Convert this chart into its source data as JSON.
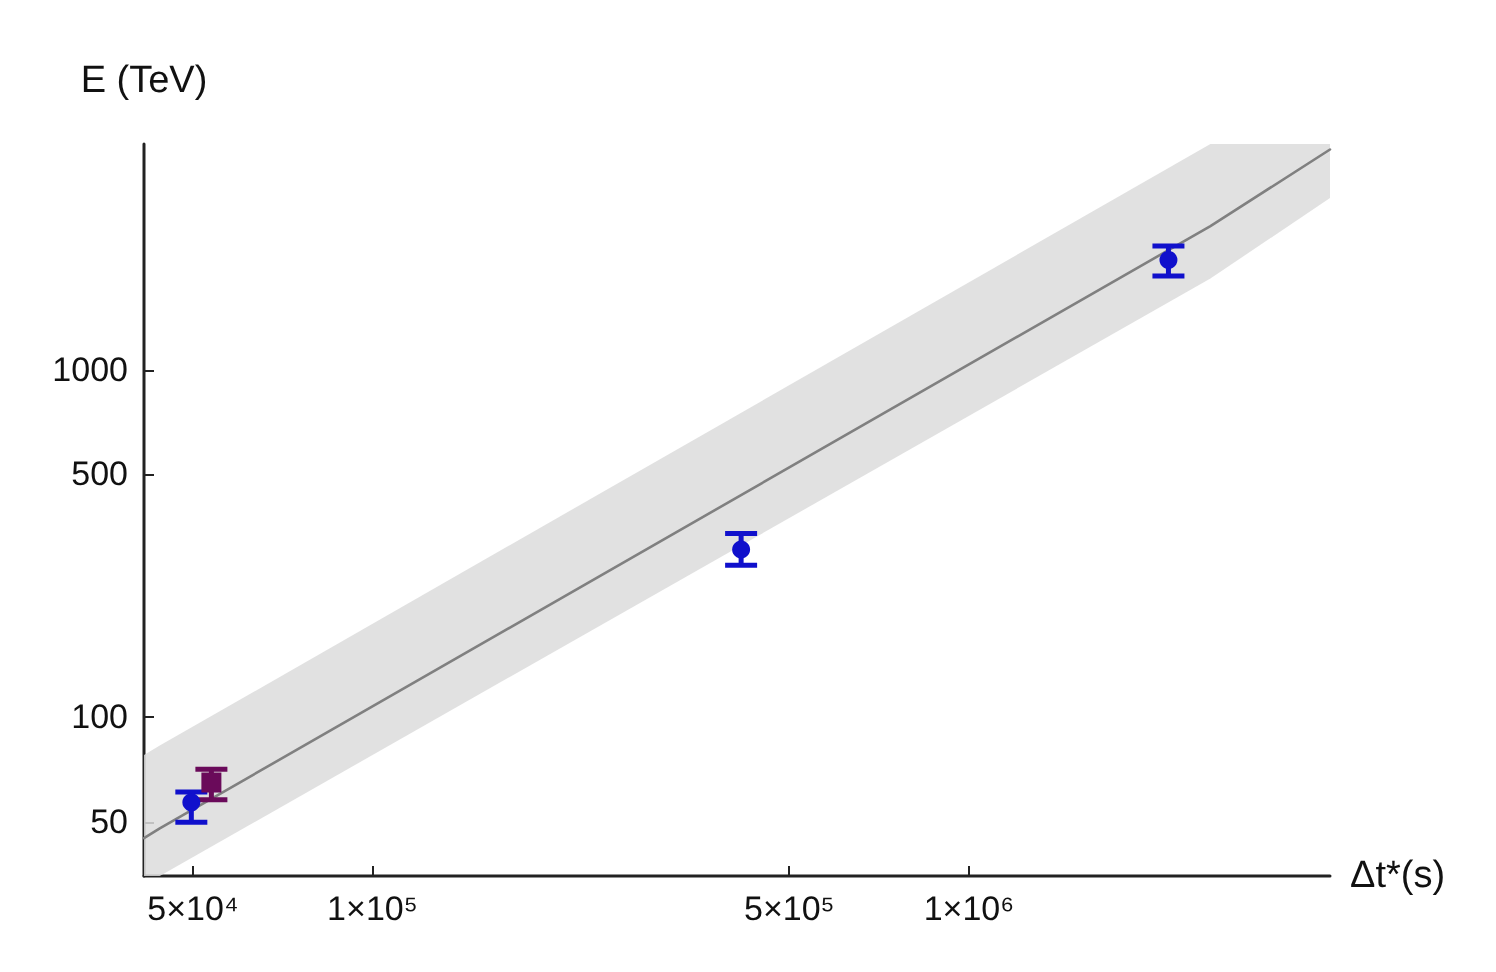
{
  "chart_data": {
    "type": "scatter",
    "xlabel": "Δt*(s)",
    "ylabel": "E (TeV)",
    "log": "xy",
    "grid": false,
    "xlim": [
      41400,
      4030000
    ],
    "ylim": [
      35,
      4460
    ],
    "xticks": [
      {
        "value": 50000,
        "label": "5×10⁴"
      },
      {
        "value": 100000,
        "label": "1×10⁵"
      },
      {
        "value": 500000,
        "label": "5×10⁵"
      },
      {
        "value": 1000000,
        "label": "1×10⁶"
      }
    ],
    "yticks": [
      50,
      100,
      500,
      1000
    ],
    "series": [
      {
        "type": "line",
        "color": "#808080",
        "marker": "none",
        "line_style": "solid",
        "x": [
          41400,
          44000,
          2540000,
          4030000
        ],
        "values": [
          45,
          48,
          2590,
          4300
        ],
        "lower": [
          35,
          35,
          1830,
          3120
        ],
        "upper": [
          78,
          83,
          4460,
          4460
        ]
      },
      {
        "color": "#1010cc",
        "marker": "circle",
        "x": [
          49700,
          415000,
          2160000
        ],
        "values": [
          57,
          304,
          2070
        ],
        "errors": [
          [
            50,
            61
          ],
          [
            274,
            338
          ],
          [
            1860,
            2270
          ]
        ]
      },
      {
        "color": "#6a0a5a",
        "marker": "square",
        "x": [
          53700
        ],
        "values": [
          65
        ],
        "errors": [
          [
            58,
            71
          ]
        ]
      }
    ]
  }
}
